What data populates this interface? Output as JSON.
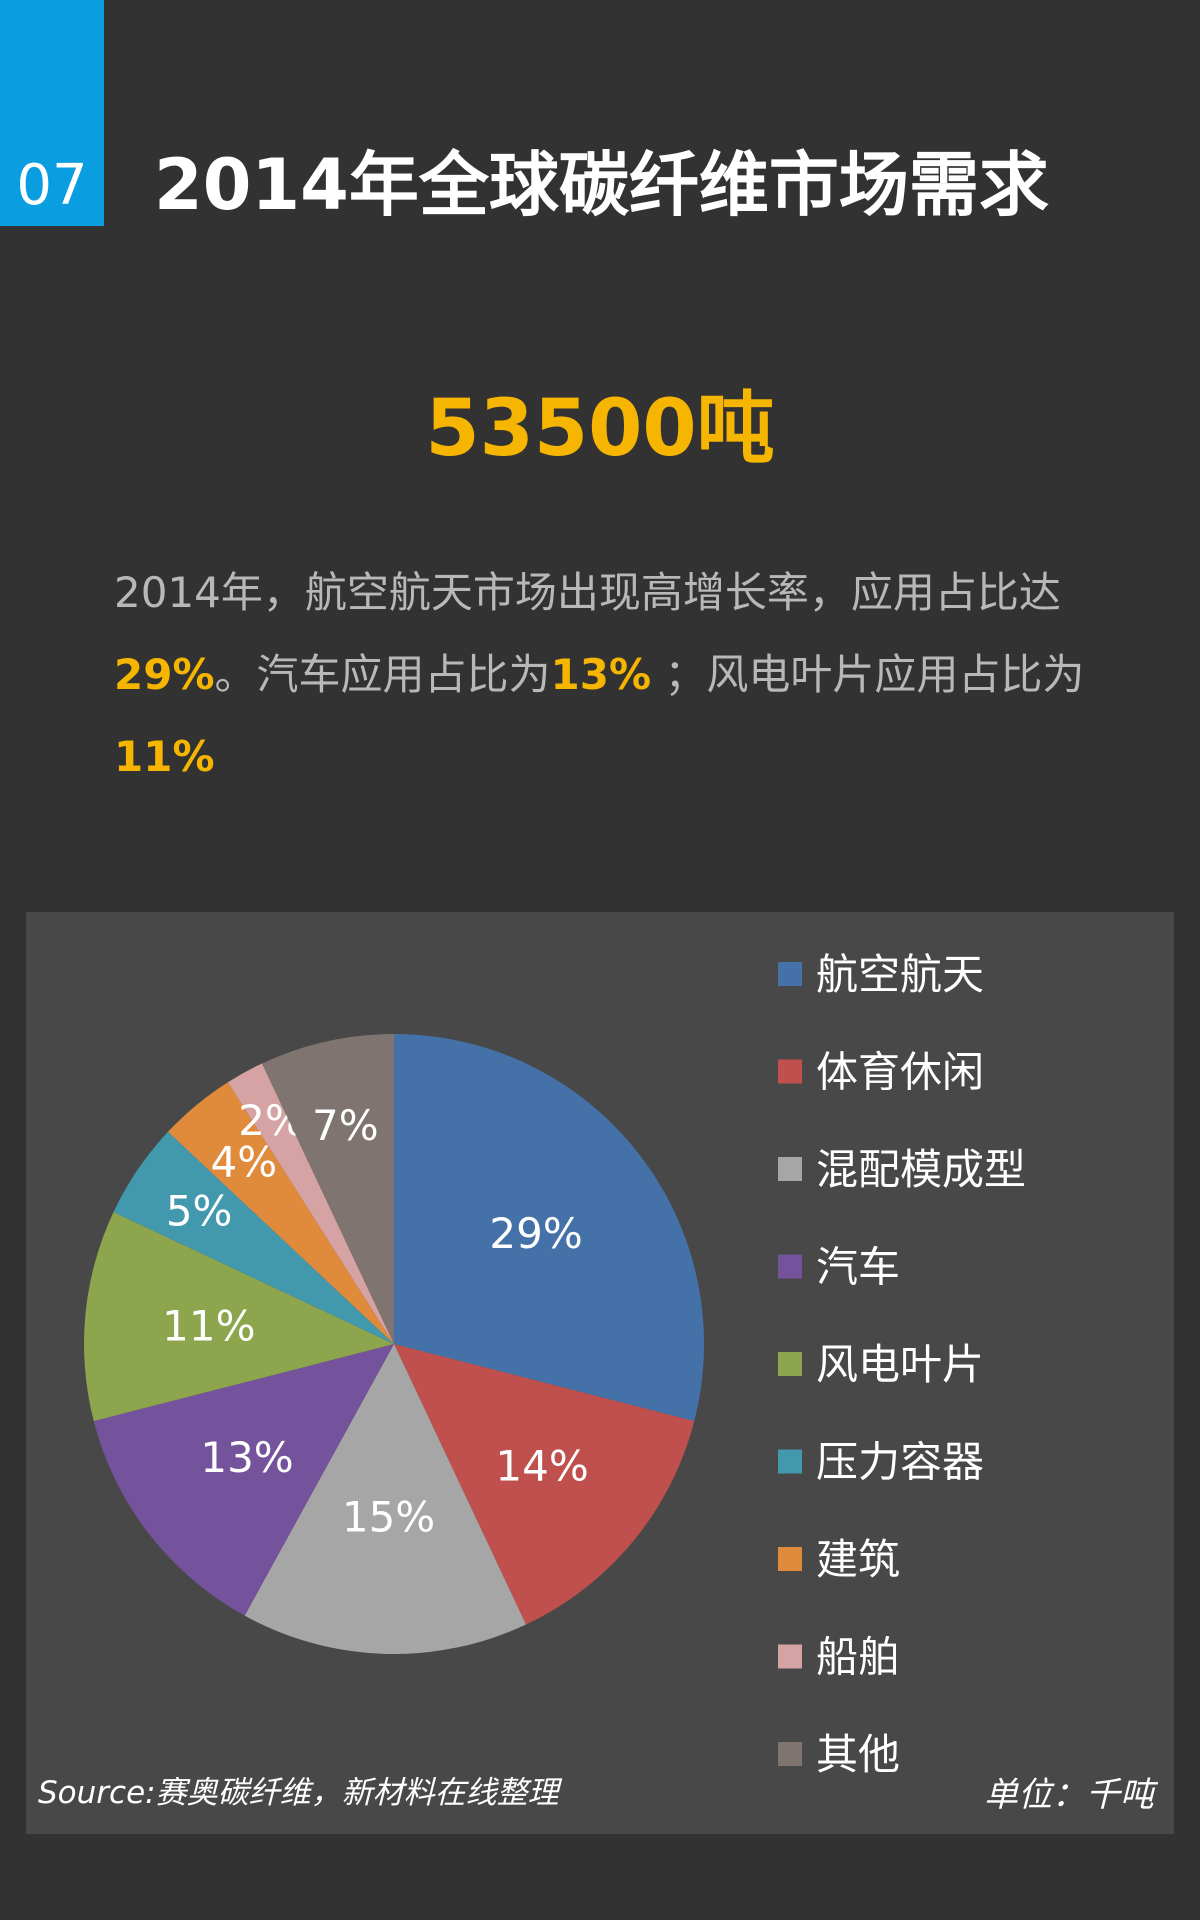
{
  "badge": "07",
  "title": "2014年全球碳纤维市场需求",
  "total": "53500吨",
  "summary": {
    "part1": "2014年，航空航天市场出现高增长率，应用占比达",
    "hl1": "29%",
    "part2": "。汽车应用占比为",
    "hl2": "13%",
    "part3": " ；风电叶片应用占比为",
    "hl3": "11%"
  },
  "source": "Source:赛奥碳纤维，新材料在线整理",
  "unit": "单位：千吨",
  "chart_data": {
    "type": "pie",
    "categories": [
      "航空航天",
      "体育休闲",
      "混配模成型",
      "汽车",
      "风电叶片",
      "压力容器",
      "建筑",
      "船舶",
      "其他"
    ],
    "values": [
      29,
      14,
      15,
      13,
      11,
      5,
      4,
      2,
      7
    ],
    "labels": [
      "29%",
      "14%",
      "15%",
      "13%",
      "11%",
      "5%",
      "4%",
      "2%",
      "7%"
    ],
    "colors": [
      "#4472a8",
      "#c0504d",
      "#a6a6a6",
      "#75529c",
      "#8da54c",
      "#4299ae",
      "#e08a3c",
      "#d6a3a4",
      "#7f7470"
    ],
    "legend": "right"
  }
}
